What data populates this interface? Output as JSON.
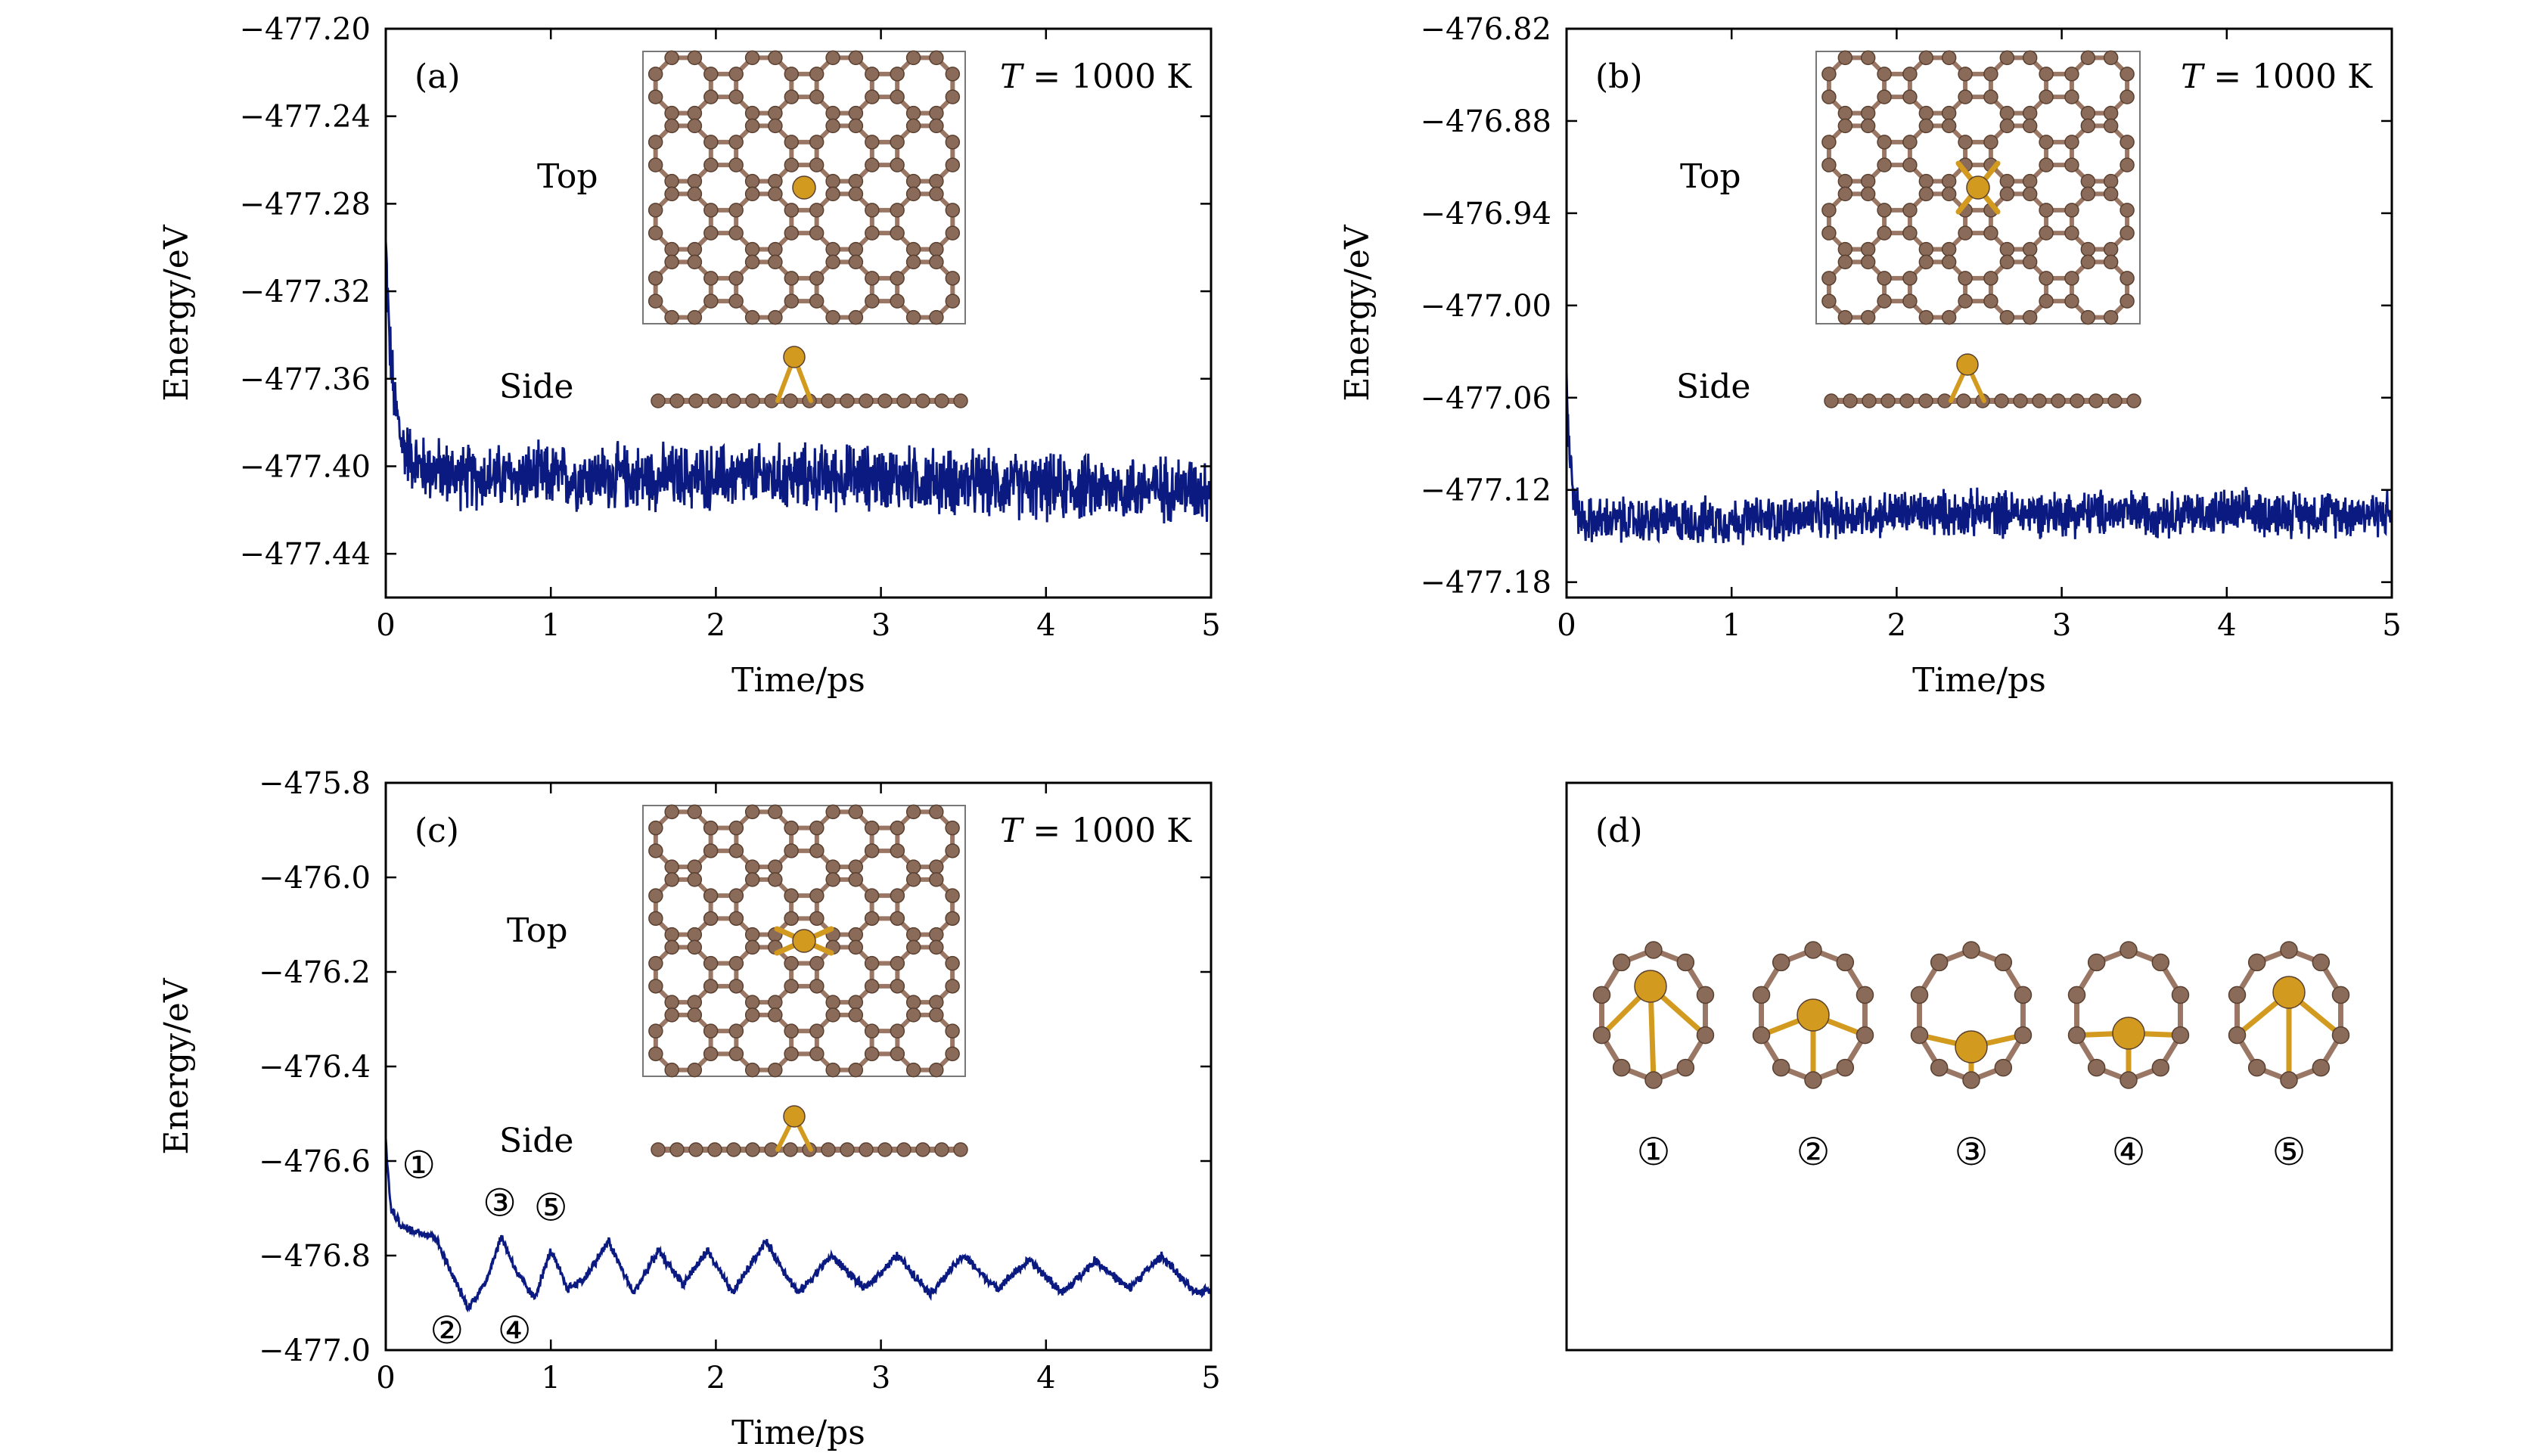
{
  "chart_data": [
    {
      "type": "line",
      "panel_label": "(a)",
      "annotation": {
        "prefix": "T",
        "text": " = 1000 K"
      },
      "xlabel": "Time/ps",
      "ylabel": "Energy/eV",
      "xlim": [
        0,
        5
      ],
      "ylim": [
        -477.46,
        -477.2
      ],
      "xticks": [
        "0",
        "1",
        "2",
        "3",
        "4",
        "5"
      ],
      "yticks": [
        "−477.20",
        "−477.24",
        "−477.28",
        "−477.32",
        "−477.36",
        "−477.40",
        "−477.44"
      ],
      "ytick_values": [
        -477.2,
        -477.24,
        -477.28,
        -477.32,
        -477.36,
        -477.4,
        -477.44
      ],
      "line_color": "#0a1a80",
      "inset_labels": {
        "top": "Top",
        "side": "Side"
      },
      "series": [
        {
          "x": [
            0,
            0.02,
            0.05,
            0.1,
            0.2,
            0.5,
            1,
            2,
            3,
            4,
            5
          ],
          "y": [
            -477.3,
            -477.34,
            -477.37,
            -477.39,
            -477.4,
            -477.405,
            -477.405,
            -477.405,
            -477.405,
            -477.41,
            -477.41
          ],
          "noise": 0.012
        }
      ]
    },
    {
      "type": "line",
      "panel_label": "(b)",
      "annotation": {
        "prefix": "T",
        "text": " = 1000 K"
      },
      "xlabel": "Time/ps",
      "ylabel": "Energy/eV",
      "xlim": [
        0,
        5
      ],
      "ylim": [
        -477.19,
        -476.82
      ],
      "xticks": [
        "0",
        "1",
        "2",
        "3",
        "4",
        "5"
      ],
      "yticks": [
        "−476.82",
        "−476.88",
        "−476.94",
        "−477.00",
        "−477.06",
        "−477.12",
        "−477.18"
      ],
      "ytick_values": [
        -476.82,
        -476.88,
        -476.94,
        -477.0,
        -477.06,
        -477.12,
        -477.18
      ],
      "line_color": "#0a1a80",
      "inset_labels": {
        "top": "Top",
        "side": "Side"
      },
      "series": [
        {
          "x": [
            0,
            0.02,
            0.05,
            0.1,
            0.3,
            1,
            2,
            3,
            4,
            5
          ],
          "y": [
            -477.05,
            -477.1,
            -477.13,
            -477.14,
            -477.14,
            -477.14,
            -477.135,
            -477.135,
            -477.135,
            -477.135
          ],
          "noise": 0.012
        }
      ]
    },
    {
      "type": "line",
      "panel_label": "(c)",
      "annotation": {
        "prefix": "T",
        "text": " = 1000 K"
      },
      "xlabel": "Time/ps",
      "ylabel": "Energy/eV",
      "xlim": [
        0,
        5
      ],
      "ylim": [
        -477.0,
        -475.8
      ],
      "xticks": [
        "0",
        "1",
        "2",
        "3",
        "4",
        "5"
      ],
      "yticks": [
        "−475.8",
        "−476.0",
        "−476.2",
        "−476.4",
        "−476.6",
        "−476.8",
        "−477.0"
      ],
      "ytick_values": [
        -475.8,
        -476.0,
        -476.2,
        -476.4,
        -476.6,
        -476.8,
        -477.0
      ],
      "line_color": "#0a1a80",
      "inset_labels": {
        "top": "Top",
        "side": "Side"
      },
      "markers": [
        {
          "label": "①",
          "x": 0.2,
          "y": -476.61
        },
        {
          "label": "②",
          "x": 0.37,
          "y": -476.96
        },
        {
          "label": "③",
          "x": 0.69,
          "y": -476.69
        },
        {
          "label": "④",
          "x": 0.78,
          "y": -476.96
        },
        {
          "label": "⑤",
          "x": 1.0,
          "y": -476.7
        }
      ],
      "series": [
        {
          "x": [
            0,
            0.03,
            0.1,
            0.2,
            0.3,
            0.4,
            0.5,
            0.6,
            0.7,
            0.8,
            0.9,
            1.0,
            1.1,
            1.2,
            1.35,
            1.5,
            1.65,
            1.8,
            1.95,
            2.1,
            2.3,
            2.5,
            2.7,
            2.9,
            3.1,
            3.3,
            3.5,
            3.7,
            3.9,
            4.1,
            4.3,
            4.5,
            4.7,
            4.9,
            5.0
          ],
          "y": [
            -476.56,
            -476.7,
            -476.74,
            -476.75,
            -476.76,
            -476.84,
            -476.91,
            -476.86,
            -476.76,
            -476.84,
            -476.89,
            -476.79,
            -476.87,
            -476.85,
            -476.77,
            -476.88,
            -476.79,
            -476.86,
            -476.79,
            -476.88,
            -476.77,
            -476.88,
            -476.8,
            -476.87,
            -476.8,
            -476.88,
            -476.8,
            -476.87,
            -476.81,
            -476.88,
            -476.81,
            -476.87,
            -476.8,
            -476.88,
            -476.87
          ],
          "noise": 0.008
        }
      ]
    },
    {
      "type": "other",
      "panel_label": "(d)",
      "structure_labels": [
        "①",
        "②",
        "③",
        "④",
        "⑤"
      ]
    }
  ],
  "colors": {
    "carbon": "#8a6a58",
    "bond": "#9a7664",
    "metal": "#d29a1e",
    "line": "#0a1a80",
    "frame": "#000000",
    "inset_frame": "#777777"
  },
  "icons": {
    "atom": "ball-and-stick-model"
  }
}
